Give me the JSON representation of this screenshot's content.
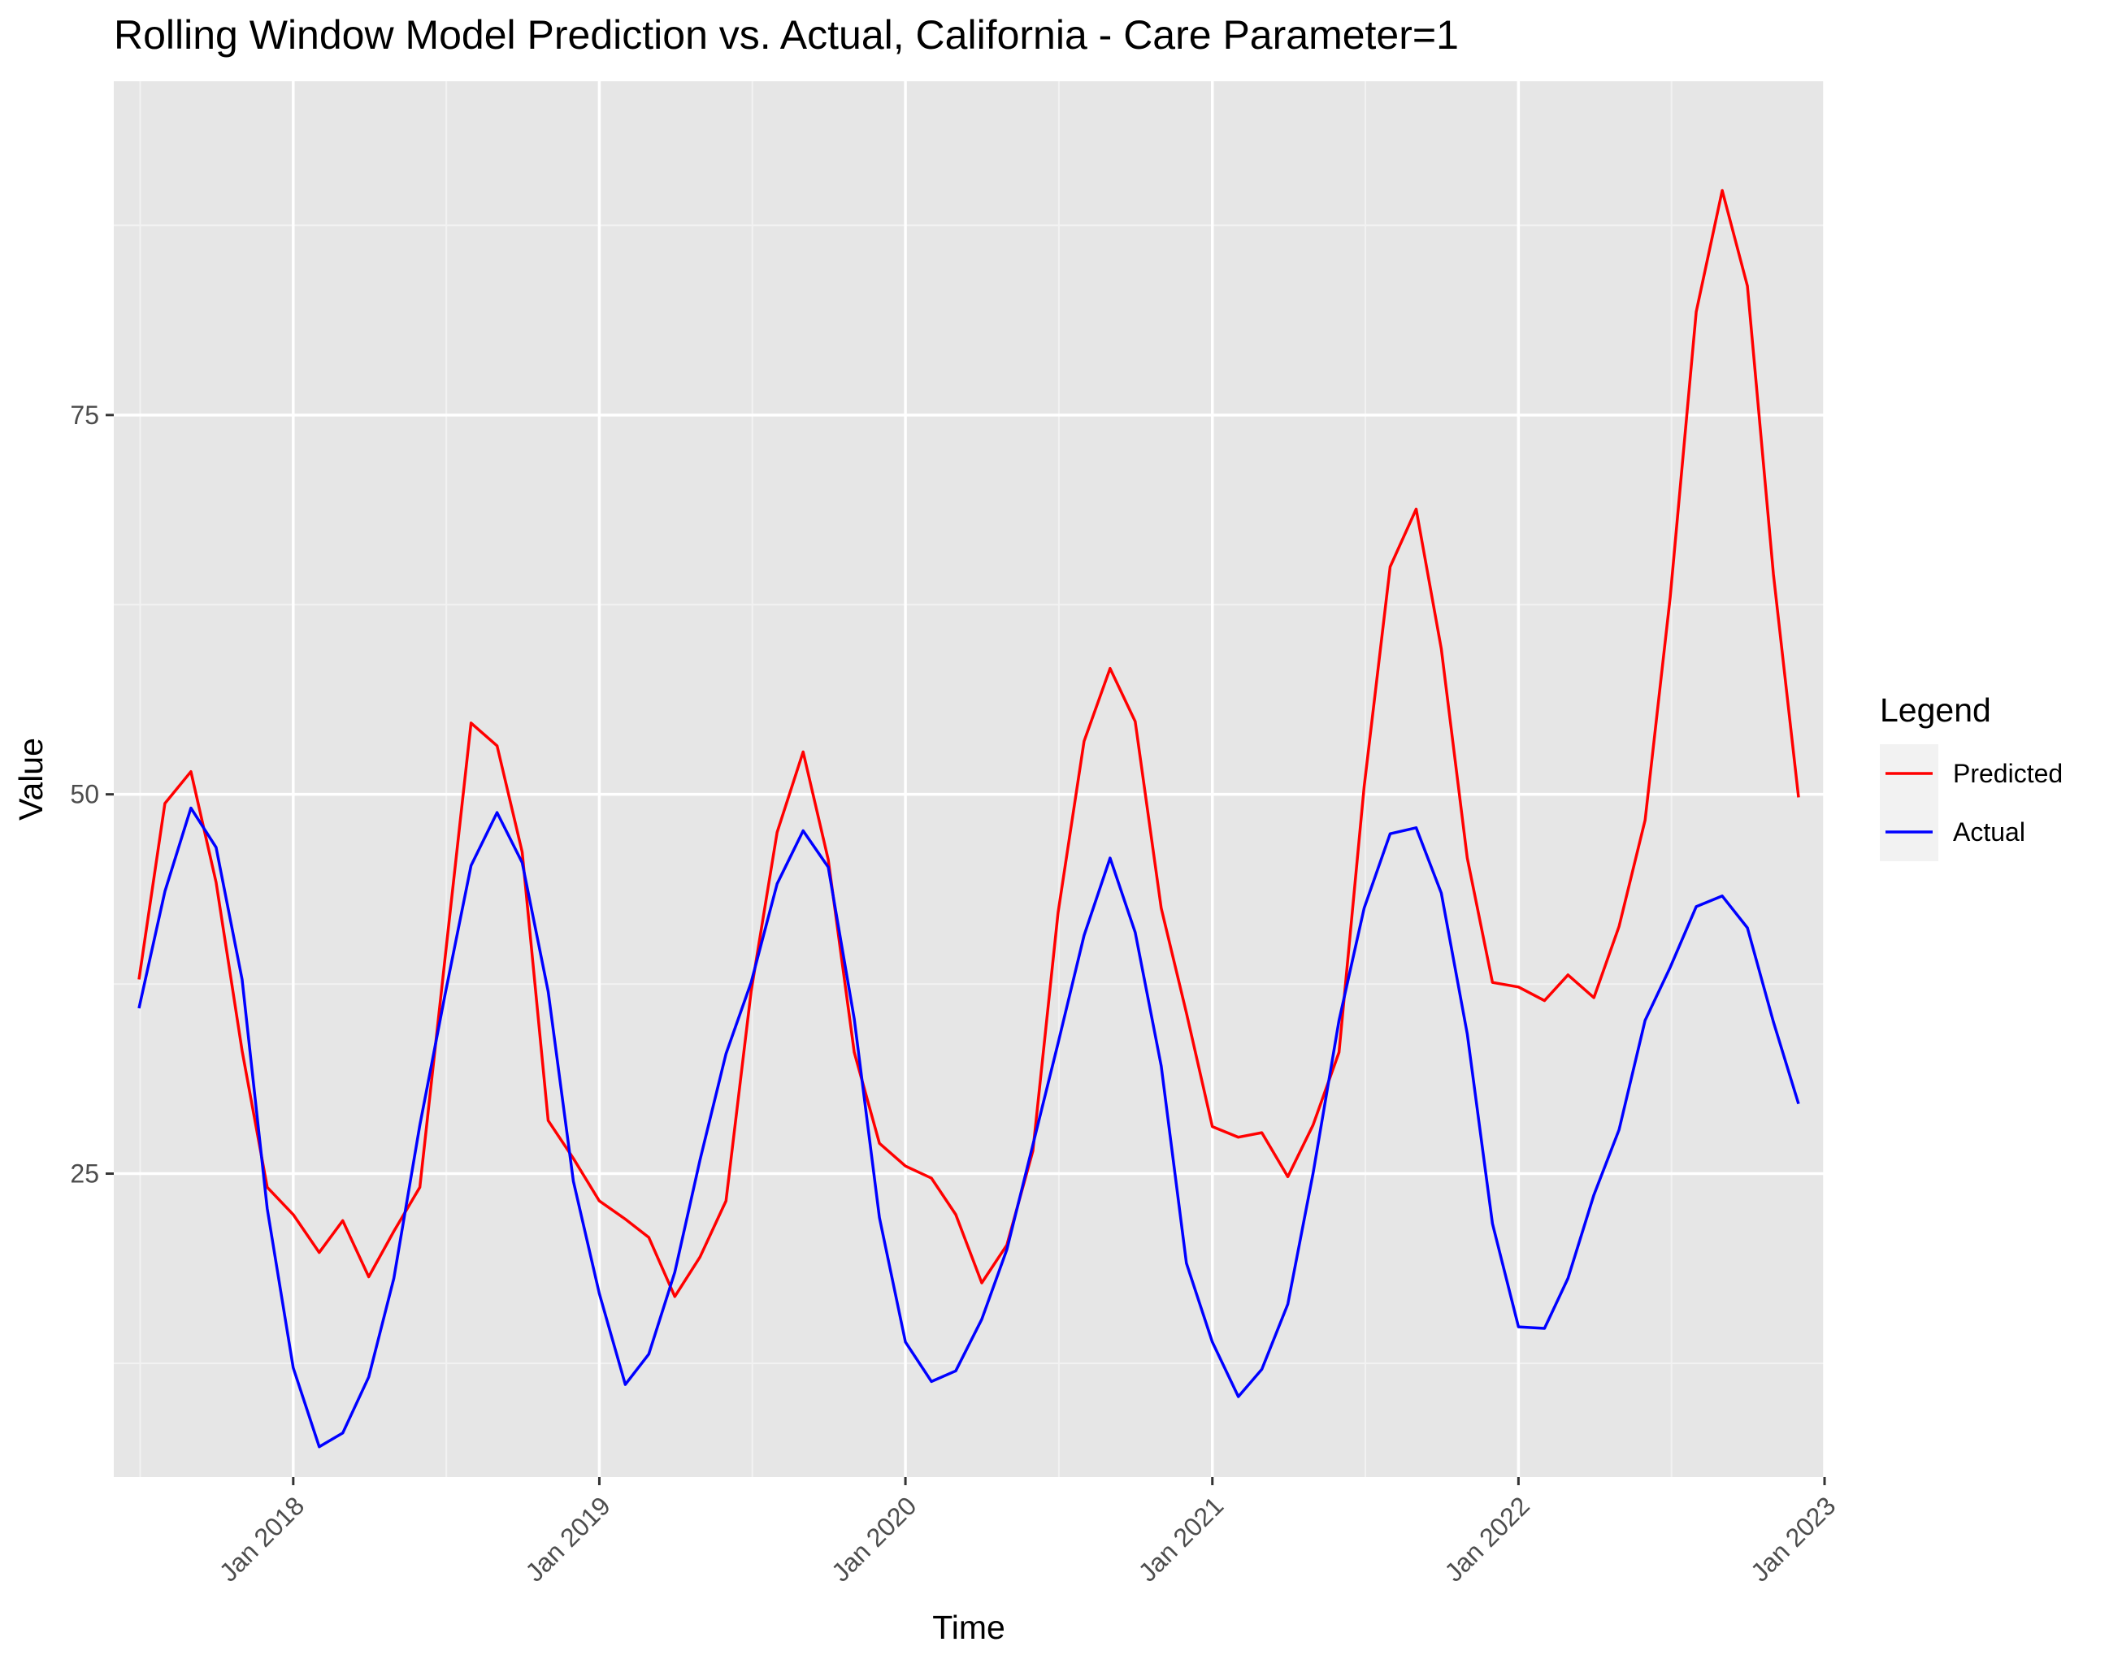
{
  "chart_data": {
    "type": "line",
    "title": "Rolling Window Model Prediction vs. Actual, California - Care Parameter=1",
    "xlabel": "Time",
    "ylabel": "Value",
    "x_range": [
      "2017-06-01",
      "2023-01-01"
    ],
    "ylim": [
      5,
      97
    ],
    "y_ticks": [
      25,
      50,
      75
    ],
    "x_ticks": [
      {
        "date": "2018-01-01",
        "label": "Jan 2018"
      },
      {
        "date": "2019-01-01",
        "label": "Jan 2019"
      },
      {
        "date": "2020-01-01",
        "label": "Jan 2020"
      },
      {
        "date": "2021-01-01",
        "label": "Jan 2021"
      },
      {
        "date": "2022-01-01",
        "label": "Jan 2022"
      },
      {
        "date": "2023-01-01",
        "label": "Jan 2023"
      }
    ],
    "grid": true,
    "legend": {
      "title": "Legend",
      "position": "right"
    },
    "x": [
      "2017-07-01",
      "2017-08-01",
      "2017-09-01",
      "2017-10-01",
      "2017-11-01",
      "2017-12-01",
      "2018-01-01",
      "2018-02-01",
      "2018-03-01",
      "2018-04-01",
      "2018-05-01",
      "2018-06-01",
      "2018-07-01",
      "2018-08-01",
      "2018-09-01",
      "2018-10-01",
      "2018-11-01",
      "2018-12-01",
      "2019-01-01",
      "2019-02-01",
      "2019-03-01",
      "2019-04-01",
      "2019-05-01",
      "2019-06-01",
      "2019-07-01",
      "2019-08-01",
      "2019-09-01",
      "2019-10-01",
      "2019-11-01",
      "2019-12-01",
      "2020-01-01",
      "2020-02-01",
      "2020-03-01",
      "2020-04-01",
      "2020-05-01",
      "2020-06-01",
      "2020-07-01",
      "2020-08-01",
      "2020-09-01",
      "2020-10-01",
      "2020-11-01",
      "2020-12-01",
      "2021-01-01",
      "2021-02-01",
      "2021-03-01",
      "2021-04-01",
      "2021-05-01",
      "2021-06-01",
      "2021-07-01",
      "2021-08-01",
      "2021-09-01",
      "2021-10-01",
      "2021-11-01",
      "2021-12-01",
      "2022-01-01",
      "2022-02-01",
      "2022-03-01",
      "2022-04-01",
      "2022-05-01",
      "2022-06-01",
      "2022-07-01",
      "2022-08-01",
      "2022-09-01",
      "2022-10-01",
      "2022-11-01",
      "2022-12-01"
    ],
    "series": [
      {
        "name": "Predicted",
        "color": "#ff0000",
        "values": [
          37.8,
          49.4,
          51.5,
          44.2,
          33.1,
          24.1,
          22.3,
          19.8,
          21.9,
          18.2,
          21.2,
          24.1,
          39.2,
          54.7,
          53.2,
          46.2,
          28.5,
          26.0,
          23.2,
          22.0,
          20.8,
          16.9,
          19.5,
          23.2,
          37.0,
          47.5,
          52.8,
          45.7,
          33.0,
          27.0,
          25.5,
          24.7,
          22.3,
          17.8,
          20.3,
          26.5,
          42.2,
          53.5,
          58.3,
          54.8,
          42.5,
          35.6,
          28.1,
          27.4,
          27.7,
          24.8,
          28.2,
          33.0,
          50.5,
          65.0,
          68.8,
          59.6,
          45.8,
          37.6,
          37.3,
          36.4,
          38.1,
          36.6,
          41.3,
          48.3,
          63.0,
          81.8,
          89.8,
          83.5,
          64.5,
          49.8
        ]
      },
      {
        "name": "Actual",
        "color": "#0000ff",
        "values": [
          35.9,
          43.6,
          49.1,
          46.5,
          37.8,
          22.7,
          12.2,
          7.0,
          7.9,
          11.6,
          18.1,
          28.2,
          36.8,
          45.3,
          48.8,
          45.5,
          37.0,
          24.5,
          17.1,
          11.1,
          13.1,
          18.5,
          25.9,
          32.9,
          37.6,
          44.1,
          47.6,
          45.2,
          35.2,
          22.1,
          13.9,
          11.3,
          12.0,
          15.4,
          20.0,
          26.9,
          33.6,
          40.7,
          45.8,
          40.9,
          32.1,
          19.1,
          13.9,
          10.3,
          12.1,
          16.4,
          25.0,
          35.1,
          42.5,
          47.4,
          47.8,
          43.5,
          34.2,
          21.7,
          14.9,
          14.8,
          18.1,
          23.6,
          27.9,
          35.1,
          38.6,
          42.6,
          43.3,
          41.2,
          35.0,
          29.6
        ]
      }
    ]
  }
}
